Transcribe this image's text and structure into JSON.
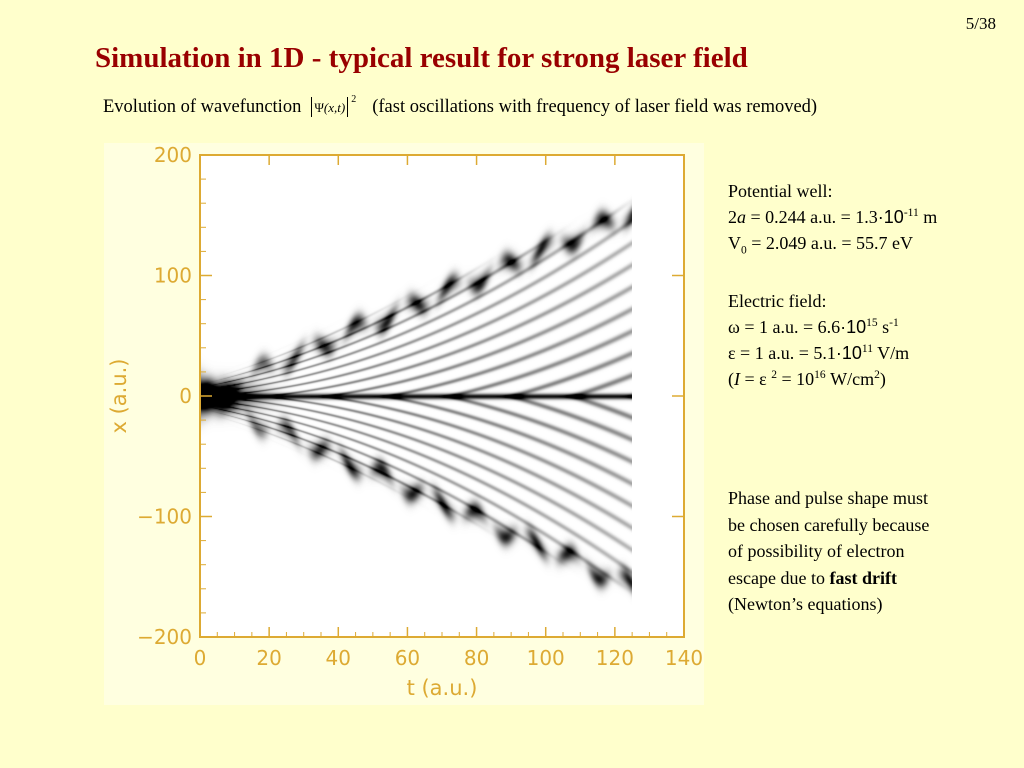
{
  "page_number": "5/38",
  "title": "Simulation in 1D - typical result for strong laser field",
  "subtitle": {
    "prefix": "Evolution of wavefunction",
    "formula_symbol": "Ψ",
    "formula_args": "(x,t)",
    "formula_power": "2",
    "suffix": "(fast oscillations with frequency of laser field was removed)"
  },
  "potential_well": {
    "heading": "Potential well:",
    "a_prefix": "2",
    "a_var": "a",
    "a_value": " = 0.244 a.u. = 1.3",
    "a_dot": "·10",
    "a_exp": "-11",
    "a_unit": " m",
    "v_symbol": "V",
    "v_sub": "0",
    "v_value": " = 2.049 a.u. = 55.7 eV"
  },
  "electric_field": {
    "heading": "Electric field:",
    "omega": "ω = 1 a.u. = 6.6",
    "omega_dot": "·10",
    "omega_exp": "15",
    "omega_unit": " s",
    "omega_unit_exp": "-1",
    "eps": "ε = 1 a.u. = 5.1",
    "eps_dot": "·10",
    "eps_exp": "11",
    "eps_unit": " V/m",
    "intensity_open": "(",
    "intensity_var": "I",
    "intensity_eq": " = ε ",
    "intensity_eps_exp": "2",
    "intensity_mid": " = 10",
    "intensity_exp": "16",
    "intensity_unit": " W/cm",
    "intensity_unit_exp": "2",
    "intensity_close": ")"
  },
  "note": {
    "line1": "Phase and pulse shape must",
    "line2": "be chosen carefully because",
    "line3": "of possibility of electron",
    "line4_prefix": "escape due to ",
    "line4_bold": "fast drift",
    "line5": "(Newton’s equations)"
  },
  "chart_data": {
    "type": "heatmap",
    "title": "",
    "xlabel": "t (a.u.)",
    "ylabel": "x (a.u.)",
    "xlim": [
      0,
      140
    ],
    "ylim": [
      -200,
      200
    ],
    "x_ticks": [
      "0",
      "20",
      "40",
      "60",
      "80",
      "100",
      "120",
      "140"
    ],
    "y_ticks": [
      "200",
      "100",
      "0",
      "−100",
      "−200"
    ],
    "data_extent_t": [
      0,
      125
    ],
    "data_extent_x": [
      -180,
      180
    ],
    "description_values": {
      "central_line_x": 0,
      "outer_branch_upper_end": {
        "t": 125,
        "x": 150
      },
      "outer_branch_lower_end": {
        "t": 125,
        "x": -155
      }
    },
    "axis_color": "#ddaa33",
    "colormap": "grayscale_inverted"
  }
}
